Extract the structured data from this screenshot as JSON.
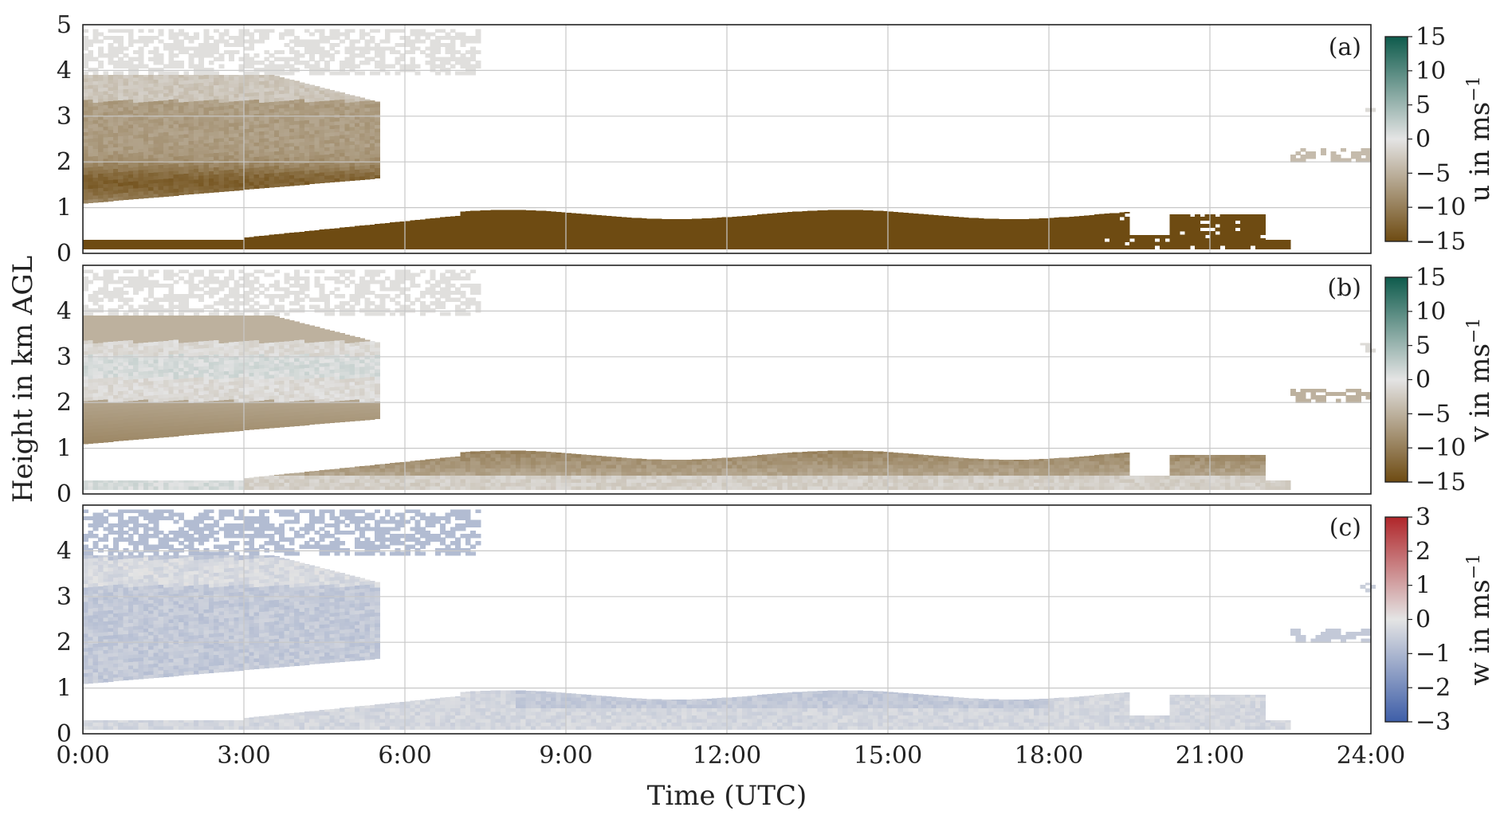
{
  "chart_data": {
    "type": "heatmap",
    "xlabel": "Time (UTC)",
    "ylabel": "Height in km AGL",
    "xlim": [
      0,
      24
    ],
    "ylim": [
      0,
      5
    ],
    "x_tick_labels": [
      "0:00",
      "3:00",
      "6:00",
      "9:00",
      "12:00",
      "15:00",
      "18:00",
      "21:00",
      "24:00"
    ],
    "x_tick_values_h": [
      0,
      3,
      6,
      9,
      12,
      15,
      18,
      21,
      24
    ],
    "y_tick_values": [
      0,
      1,
      2,
      3,
      4,
      5
    ],
    "y_tick_labels_top": [
      "0",
      "1",
      "2",
      "3",
      "4",
      "5"
    ],
    "y_tick_labels_lower": [
      "0",
      "1",
      "2",
      "3",
      "4"
    ],
    "grid": true,
    "panels": [
      {
        "panel_label": "(a)",
        "colorbar_label": "u in ms",
        "colorbar_unit_exponent": "−1",
        "colorbar_range": [
          -15,
          15
        ],
        "colorbar_ticks": [
          "15",
          "10",
          "5",
          "0",
          "−5",
          "−10",
          "−15"
        ],
        "colorbar_tick_values": [
          15,
          10,
          5,
          0,
          -5,
          -10,
          -15
        ],
        "colors": {
          "low": "#6e4b12",
          "mid": "#e4e4e4",
          "high": "#0e5b4c"
        },
        "regions": [
          {
            "t0": 0.0,
            "t1": 7.4,
            "z0": 3.9,
            "z1": 4.9,
            "v": -0.5,
            "sparse": true
          },
          {
            "t0": 0.0,
            "t1": 5.5,
            "z0": 1.1,
            "z1": 3.9,
            "v": -7,
            "profile": "u_upper"
          },
          {
            "t0": 0.0,
            "t1": 22.5,
            "z0": 0.1,
            "z1": 0.95,
            "v": -15,
            "profile": "lowjet"
          },
          {
            "t0": 22.5,
            "t1": 24.0,
            "z0": 2.0,
            "z1": 2.3,
            "v": -4,
            "sparse": true
          },
          {
            "t0": 23.8,
            "t1": 24.0,
            "z0": 3.1,
            "z1": 3.3,
            "v": -1,
            "sparse": true
          }
        ]
      },
      {
        "panel_label": "(b)",
        "colorbar_label": "v in ms",
        "colorbar_unit_exponent": "−1",
        "colorbar_range": [
          -15,
          15
        ],
        "colorbar_ticks": [
          "15",
          "10",
          "5",
          "0",
          "−5",
          "−10",
          "−15"
        ],
        "colorbar_tick_values": [
          15,
          10,
          5,
          0,
          -5,
          -10,
          -15
        ],
        "colors": {
          "low": "#6e4b12",
          "mid": "#e4e4e4",
          "high": "#0e5b4c"
        },
        "regions": [
          {
            "t0": 0.0,
            "t1": 7.4,
            "z0": 3.9,
            "z1": 4.9,
            "v": -0.5,
            "sparse": true
          },
          {
            "t0": 0.0,
            "t1": 5.5,
            "z0": 1.1,
            "z1": 3.9,
            "v": -4,
            "profile": "v_upper"
          },
          {
            "t0": 0.0,
            "t1": 22.5,
            "z0": 0.1,
            "z1": 0.95,
            "v": -6,
            "profile": "v_low"
          },
          {
            "t0": 22.5,
            "t1": 24.0,
            "z0": 2.0,
            "z1": 2.3,
            "v": -5,
            "sparse": true
          },
          {
            "t0": 23.8,
            "t1": 24.0,
            "z0": 3.1,
            "z1": 3.3,
            "v": -1,
            "sparse": true
          }
        ]
      },
      {
        "panel_label": "(c)",
        "colorbar_label": "w in ms",
        "colorbar_unit_exponent": "−1",
        "colorbar_range": [
          -3,
          3
        ],
        "colorbar_ticks": [
          "3",
          "2",
          "1",
          "0",
          "−1",
          "−2",
          "−3"
        ],
        "colorbar_tick_values": [
          3,
          2,
          1,
          0,
          -1,
          -2,
          -3
        ],
        "colors": {
          "low": "#3e5ea8",
          "mid": "#e4e4e4",
          "high": "#b0262a"
        },
        "regions": [
          {
            "t0": 0.0,
            "t1": 7.4,
            "z0": 3.9,
            "z1": 4.9,
            "v": -0.9,
            "sparse": true
          },
          {
            "t0": 0.0,
            "t1": 5.5,
            "z0": 1.1,
            "z1": 3.9,
            "v": -0.6,
            "profile": "w_upper"
          },
          {
            "t0": 0.0,
            "t1": 22.5,
            "z0": 0.1,
            "z1": 0.95,
            "v": -0.3,
            "profile": "w_low"
          },
          {
            "t0": 22.5,
            "t1": 24.0,
            "z0": 2.0,
            "z1": 2.3,
            "v": -0.6,
            "sparse": true
          },
          {
            "t0": 23.8,
            "t1": 24.0,
            "z0": 3.1,
            "z1": 3.3,
            "v": -0.5,
            "sparse": true
          }
        ]
      }
    ]
  }
}
